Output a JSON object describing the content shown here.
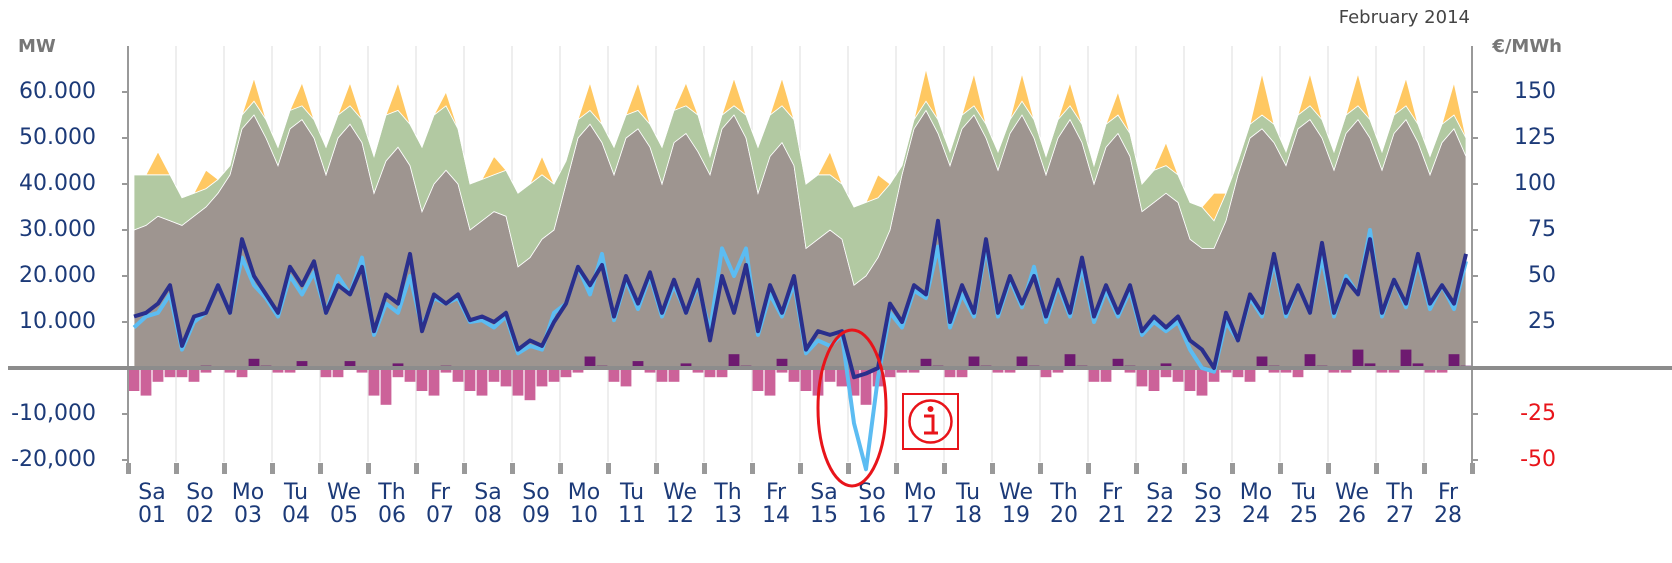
{
  "chart_data": {
    "type": "area",
    "title": "February 2014",
    "y_label": "MW",
    "y2_label": "€/MWh",
    "weekdays": [
      "Sa",
      "So",
      "Mo",
      "Tu",
      "We",
      "Th",
      "Fr",
      "Sa",
      "So",
      "Mo",
      "Tu",
      "We",
      "Th",
      "Fr",
      "Sa",
      "So",
      "Mo",
      "Tu",
      "We",
      "Th",
      "Fr",
      "Sa",
      "So",
      "Mo",
      "Tu",
      "We",
      "Th",
      "Fr"
    ],
    "days": [
      "01",
      "02",
      "03",
      "04",
      "05",
      "06",
      "07",
      "08",
      "09",
      "10",
      "11",
      "12",
      "13",
      "14",
      "15",
      "16",
      "17",
      "18",
      "19",
      "20",
      "21",
      "22",
      "23",
      "24",
      "25",
      "26",
      "27",
      "28"
    ],
    "ylim": [
      -22000,
      70000
    ],
    "yticks": [
      {
        "value": 60000,
        "label": "60.000"
      },
      {
        "value": 50000,
        "label": "50.000"
      },
      {
        "value": 40000,
        "label": "40.000"
      },
      {
        "value": 30000,
        "label": "30.000"
      },
      {
        "value": 20000,
        "label": "20.000"
      },
      {
        "value": 10000,
        "label": "10.000"
      },
      {
        "value": -10000,
        "label": "-10,000"
      },
      {
        "value": -20000,
        "label": "-20,000"
      }
    ],
    "y2lim": [
      -55,
      175
    ],
    "y2ticks": [
      150,
      125,
      100,
      75,
      50,
      25,
      -25,
      -50
    ],
    "negative_tick_color": "#e8141a",
    "series": [
      {
        "type": "area",
        "color": "#9e9590",
        "values": [
          30000,
          31000,
          33000,
          32000,
          31000,
          33000,
          35000,
          38000,
          42000,
          52000,
          55000,
          50000,
          44000,
          52000,
          54000,
          50000,
          42000,
          50000,
          53000,
          49000,
          38000,
          45000,
          48000,
          44000,
          34000,
          40000,
          43000,
          40000,
          30000,
          32000,
          34000,
          33000,
          22000,
          24000,
          28000,
          30000,
          40000,
          50000,
          53000,
          49000,
          42000,
          50000,
          52000,
          48000,
          40000,
          49000,
          51000,
          47000,
          42000,
          52000,
          55000,
          50000,
          38000,
          46000,
          49000,
          44000,
          26000,
          28000,
          30000,
          28000,
          18000,
          20000,
          24000,
          30000,
          42000,
          52000,
          56000,
          51000,
          44000,
          52000,
          55000,
          50000,
          43000,
          51000,
          55000,
          50000,
          42000,
          50000,
          54000,
          49000,
          40000,
          48000,
          51000,
          46000,
          34000,
          36000,
          38000,
          36000,
          28000,
          26000,
          26000,
          32000,
          42000,
          50000,
          52000,
          49000,
          44000,
          52000,
          54000,
          50000,
          43000,
          51000,
          54000,
          50000,
          43000,
          51000,
          54000,
          49000,
          42000,
          49000,
          52000,
          46000
        ]
      },
      {
        "type": "area",
        "color": "#b2c9a2",
        "values": [
          12000,
          11000,
          9000,
          10000,
          6000,
          5000,
          4000,
          3000,
          2000,
          3000,
          3000,
          4000,
          4000,
          4000,
          3000,
          4000,
          6000,
          5000,
          4000,
          5000,
          8000,
          10000,
          8000,
          9000,
          14000,
          15000,
          14000,
          12000,
          10000,
          9000,
          8000,
          10000,
          16000,
          16000,
          14000,
          10000,
          5000,
          4000,
          3000,
          4000,
          6000,
          5000,
          4000,
          5000,
          8000,
          7000,
          6000,
          8000,
          4000,
          3000,
          2000,
          5000,
          10000,
          9000,
          8000,
          10000,
          14000,
          14000,
          12000,
          12000,
          17000,
          16000,
          13000,
          10000,
          2000,
          2000,
          2000,
          3000,
          3000,
          3000,
          2000,
          3000,
          4000,
          3000,
          3000,
          4000,
          4000,
          4000,
          3000,
          4000,
          4000,
          5000,
          4000,
          5000,
          6000,
          7000,
          6000,
          6000,
          8000,
          9000,
          6000,
          6000,
          3000,
          3000,
          3000,
          4000,
          3000,
          3000,
          3000,
          4000,
          4000,
          4000,
          3000,
          4000,
          4000,
          4000,
          3000,
          4000,
          4000,
          4000,
          3000,
          4000
        ]
      },
      {
        "type": "area",
        "color": "#ffc862",
        "values": [
          0,
          0,
          5000,
          0,
          0,
          0,
          4000,
          0,
          0,
          0,
          5000,
          0,
          0,
          0,
          5000,
          0,
          0,
          0,
          5000,
          0,
          0,
          0,
          6000,
          0,
          0,
          0,
          3000,
          0,
          0,
          0,
          4000,
          0,
          0,
          0,
          4000,
          0,
          0,
          0,
          6000,
          0,
          0,
          0,
          6000,
          0,
          0,
          0,
          5000,
          0,
          0,
          0,
          6000,
          0,
          0,
          0,
          6000,
          0,
          0,
          0,
          5000,
          0,
          0,
          0,
          5000,
          0,
          0,
          0,
          7000,
          0,
          0,
          0,
          7000,
          0,
          0,
          0,
          6000,
          0,
          0,
          0,
          5000,
          0,
          0,
          0,
          5000,
          0,
          0,
          0,
          5000,
          0,
          0,
          0,
          6000,
          0,
          0,
          0,
          9000,
          0,
          0,
          0,
          7000,
          0,
          0,
          0,
          7000,
          0,
          0,
          0,
          6000,
          0,
          0,
          0,
          7000,
          0
        ]
      },
      {
        "type": "bar",
        "color": "#6e1a70",
        "values": [
          0,
          0,
          0,
          0,
          0,
          0,
          500,
          0,
          0,
          0,
          2000,
          500,
          0,
          0,
          1500,
          0,
          0,
          0,
          1500,
          0,
          0,
          0,
          1000,
          0,
          0,
          0,
          500,
          0,
          0,
          0,
          0,
          0,
          0,
          0,
          0,
          0,
          0,
          0,
          2500,
          500,
          0,
          0,
          1500,
          0,
          0,
          0,
          1000,
          0,
          0,
          0,
          3000,
          500,
          0,
          0,
          2000,
          0,
          0,
          0,
          0,
          0,
          0,
          0,
          0,
          0,
          0,
          0,
          2000,
          500,
          0,
          0,
          2500,
          500,
          0,
          0,
          2500,
          500,
          0,
          0,
          3000,
          500,
          0,
          0,
          2000,
          500,
          0,
          0,
          1000,
          0,
          0,
          0,
          0,
          0,
          0,
          0,
          2500,
          500,
          0,
          0,
          3000,
          500,
          0,
          0,
          4000,
          1000,
          0,
          0,
          4000,
          1000,
          0,
          0,
          3000,
          500
        ]
      },
      {
        "type": "bar",
        "color": "#cc6299",
        "values": [
          -5000,
          -6000,
          -3000,
          -2000,
          -2000,
          -3000,
          -1000,
          0,
          -1000,
          -2000,
          0,
          0,
          -1000,
          -1000,
          0,
          0,
          -2000,
          -2000,
          0,
          -1000,
          -6000,
          -8000,
          -2000,
          -3000,
          -5000,
          -6000,
          -1000,
          -3000,
          -5000,
          -6000,
          -3000,
          -4000,
          -6000,
          -7000,
          -4000,
          -3000,
          -2000,
          -1000,
          0,
          0,
          -3000,
          -4000,
          0,
          -1000,
          -3000,
          -3000,
          0,
          -1000,
          -2000,
          -2000,
          0,
          0,
          -5000,
          -6000,
          -1000,
          -3000,
          -5000,
          -6000,
          -3000,
          -4000,
          -6000,
          -8000,
          -4000,
          -2000,
          -1000,
          -1000,
          0,
          0,
          -2000,
          -2000,
          0,
          0,
          -1000,
          -1000,
          0,
          0,
          -2000,
          -1000,
          0,
          0,
          -3000,
          -3000,
          0,
          -1000,
          -4000,
          -5000,
          -2000,
          -3000,
          -5000,
          -6000,
          -3000,
          -1000,
          -2000,
          -3000,
          0,
          -1000,
          -1000,
          -2000,
          0,
          0,
          -1000,
          -1000,
          0,
          0,
          -1000,
          -1000,
          0,
          0,
          -1000,
          -1000,
          0,
          0
        ]
      },
      {
        "type": "line",
        "axis": "y2",
        "color": "#5cbcf2",
        "values": [
          22,
          28,
          30,
          40,
          10,
          25,
          30,
          45,
          30,
          60,
          45,
          38,
          28,
          50,
          40,
          52,
          30,
          50,
          40,
          60,
          18,
          35,
          30,
          50,
          22,
          38,
          35,
          38,
          25,
          26,
          22,
          28,
          8,
          12,
          10,
          30,
          35,
          55,
          40,
          62,
          26,
          48,
          32,
          50,
          28,
          45,
          30,
          45,
          20,
          65,
          50,
          65,
          18,
          40,
          28,
          46,
          8,
          15,
          12,
          18,
          -30,
          -55,
          -5,
          30,
          22,
          42,
          38,
          66,
          22,
          40,
          28,
          66,
          28,
          48,
          33,
          55,
          25,
          45,
          28,
          55,
          25,
          42,
          28,
          42,
          18,
          25,
          20,
          25,
          10,
          0,
          -2,
          25,
          15,
          38,
          28,
          58,
          28,
          45,
          30,
          60,
          28,
          50,
          40,
          75,
          28,
          48,
          33,
          58,
          32,
          45,
          32,
          58
        ]
      },
      {
        "type": "line",
        "axis": "y2",
        "color": "#2a2f8c",
        "values": [
          28,
          30,
          35,
          45,
          12,
          28,
          30,
          45,
          30,
          70,
          50,
          40,
          30,
          55,
          45,
          58,
          30,
          45,
          40,
          55,
          20,
          40,
          35,
          62,
          20,
          40,
          35,
          40,
          26,
          28,
          25,
          30,
          10,
          15,
          12,
          25,
          35,
          55,
          45,
          56,
          28,
          50,
          35,
          52,
          30,
          48,
          30,
          48,
          15,
          50,
          30,
          56,
          20,
          45,
          30,
          50,
          10,
          20,
          18,
          20,
          -5,
          -3,
          0,
          35,
          25,
          45,
          40,
          80,
          25,
          45,
          30,
          70,
          30,
          50,
          35,
          50,
          28,
          48,
          30,
          60,
          28,
          45,
          30,
          45,
          20,
          28,
          22,
          28,
          15,
          10,
          0,
          30,
          15,
          40,
          30,
          62,
          30,
          45,
          30,
          68,
          30,
          48,
          40,
          70,
          30,
          48,
          35,
          62,
          35,
          45,
          35,
          62
        ]
      }
    ]
  }
}
